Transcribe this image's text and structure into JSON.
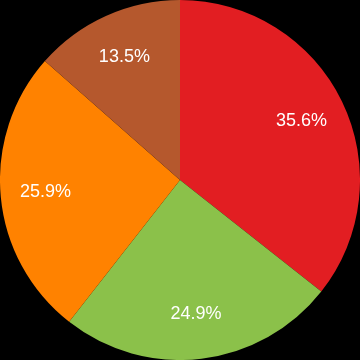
{
  "chart_data": {
    "type": "pie",
    "values": [
      35.6,
      24.9,
      25.9,
      13.5
    ],
    "value_labels": [
      "35.6%",
      "24.9%",
      "25.9%",
      "13.5%"
    ],
    "colors": [
      "#e21e22",
      "#8bc14a",
      "#ff8200",
      "#b5582d"
    ],
    "data_labels": true
  }
}
